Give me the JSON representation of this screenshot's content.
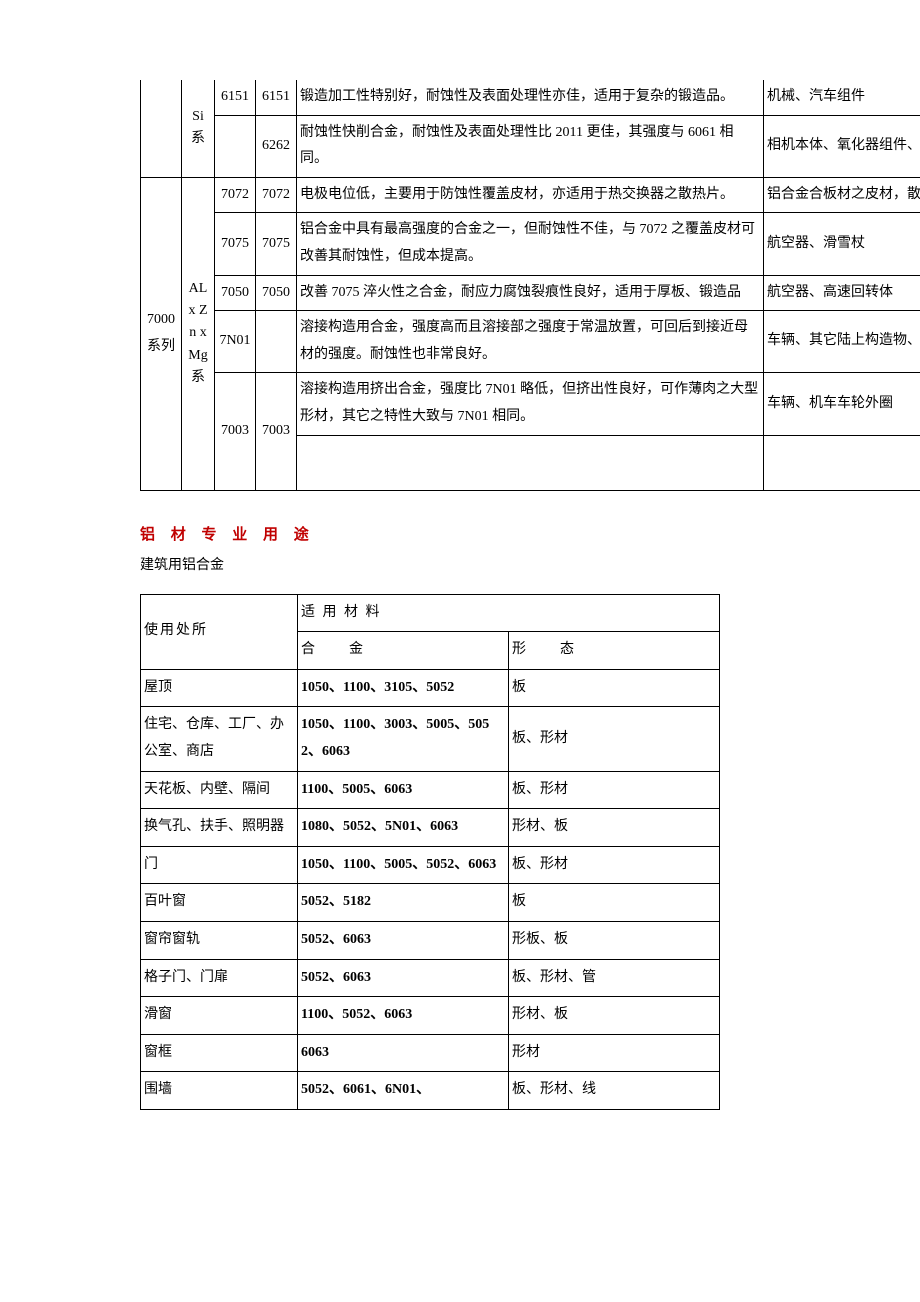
{
  "table1": {
    "group1": {
      "series_col": "",
      "subseries": "Si\n系",
      "rows": [
        {
          "a": "6151",
          "b": "6151",
          "desc": "锻造加工性特别好，耐蚀性及表面处理性亦佳，适用于复杂的锻造品。",
          "app": "机械、汽车组件"
        },
        {
          "a": "",
          "b": "6262",
          "desc": "耐蚀性快削合金，耐蚀性及表面处理性比 2011 更佳，其强度与 6061 相同。",
          "app": "相机本体、氧化器组件、制动"
        }
      ]
    },
    "group2": {
      "series": "7000\n系列",
      "subseries": "AL\n\nx\n\nZn\n\nx\n\nMg\n\n系",
      "rows": [
        {
          "a": "7072",
          "b": "7072",
          "desc": "电极电位低，主要用于防蚀性覆盖皮材，亦适用于热交换器之散热片。",
          "app": "铝合金合板材之皮材，散热片"
        },
        {
          "a": "7075",
          "b": "7075",
          "desc": "铝合金中具有最高强度的合金之一，但耐蚀性不佳，与 7072 之覆盖皮材可改善其耐蚀性，但成本提高。",
          "app": "航空器、滑雪杖"
        },
        {
          "a": "7050",
          "b": "7050",
          "desc": "改善 7075 淬火性之合金，耐应力腐蚀裂痕性良好，适用于厚板、锻造品",
          "app": "航空器、高速回转体"
        },
        {
          "a": "7N01",
          "b": "",
          "desc": "溶接构造用合金，强度高而且溶接部之强度于常温放置，可回后到接近母材的强度。耐蚀性也非常良好。",
          "app": "车辆、其它陆上构造物、航空"
        },
        {
          "a": "7003",
          "b": "7003",
          "desc": "溶接构造用挤出合金，强度比 7N01 略低，但挤出性良好，可作薄肉之大型形材，其它之特性大致与 7N01 相同。",
          "app": "车辆、机车车轮外圈"
        }
      ]
    }
  },
  "section_title": "铝 材 专 业 用 途",
  "subtitle": "建筑用铝合金",
  "table2": {
    "headers": {
      "usage": "使用处所",
      "materials": "适 用 材 料",
      "alloy": "合　　金",
      "form": "形　　态"
    },
    "rows": [
      {
        "usage": "屋顶",
        "alloy": "1050、1100、3105、5052",
        "form": "板"
      },
      {
        "usage": "住宅、仓库、工厂、办公室、商店",
        "alloy": "1050、1100、3003、5005、5052、6063",
        "form": "板、形材"
      },
      {
        "usage": "天花板、内壁、隔间",
        "alloy": "1100、5005、6063",
        "form": "板、形材"
      },
      {
        "usage": "换气孔、扶手、照明器",
        "alloy": "1080、5052、5N01、6063",
        "form": "形材、板"
      },
      {
        "usage": "门",
        "alloy": "1050、1100、5005、5052、6063",
        "form": "板、形材"
      },
      {
        "usage": "百叶窗",
        "alloy": "5052、5182",
        "form": "板"
      },
      {
        "usage": "窗帘窗轨",
        "alloy": "5052、6063",
        "form": "形板、板"
      },
      {
        "usage": "格子门、门扉",
        "alloy": "5052、6063",
        "form": "板、形材、管"
      },
      {
        "usage": "滑窗",
        "alloy": "1100、5052、6063",
        "form": "形材、板"
      },
      {
        "usage": "窗框",
        "alloy": "6063",
        "form": "形材"
      },
      {
        "usage": "围墙",
        "alloy": "5052、6061、6N01、",
        "form": "板、形材、线"
      }
    ]
  }
}
